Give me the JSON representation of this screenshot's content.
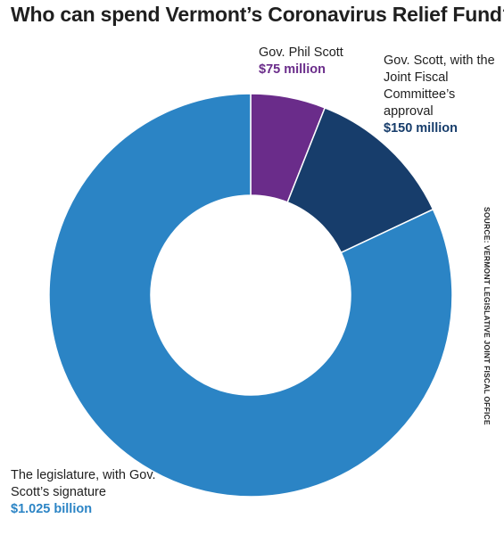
{
  "chart_data": {
    "type": "pie",
    "style": "donut",
    "title": "Who can spend Vermont’s Coronavirus Relief Fund?",
    "source": "SOURCE: VERMONT LEGISLATIVE JOINT FISCAL OFFICE",
    "slices": [
      {
        "label": "Gov. Phil Scott",
        "value_label": "$75 million",
        "value": 75,
        "color": "#6a2c8a"
      },
      {
        "label": "Gov. Scott, with the Joint Fiscal Committee’s approval",
        "value_label": "$150 million",
        "value": 150,
        "color": "#173d6b"
      },
      {
        "label": "The legislature, with Gov. Scott’s signature",
        "value_label": "$1.025 billion",
        "value": 1025,
        "color": "#2b84c5"
      }
    ]
  }
}
